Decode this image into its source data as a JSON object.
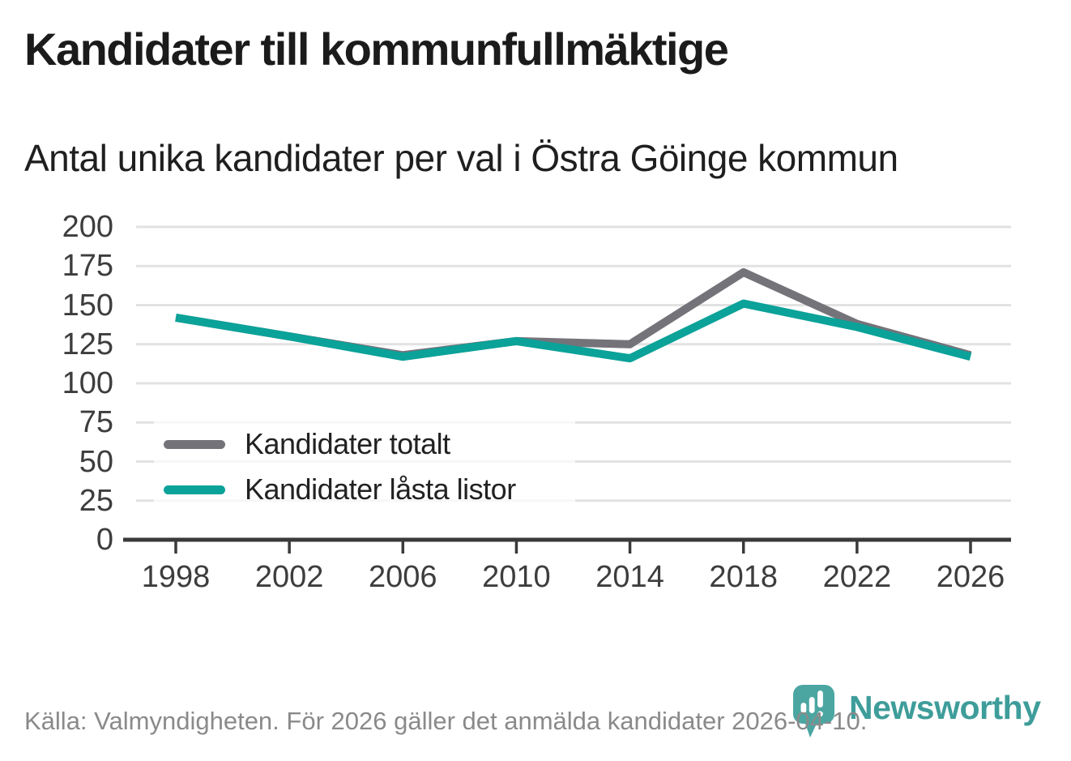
{
  "header": {
    "title": "Kandidater till kommunfullmäktige",
    "subtitle": "Antal unika kandidater per val i Östra Göinge kommun"
  },
  "chart_data": {
    "type": "line",
    "x": [
      1998,
      2002,
      2006,
      2010,
      2014,
      2018,
      2022,
      2026
    ],
    "series": [
      {
        "name": "Kandidater totalt",
        "color": "#75737A",
        "values": [
          142,
          130,
          118,
          127,
          125,
          171,
          138,
          118
        ]
      },
      {
        "name": "Kandidater låsta listor",
        "color": "#0AA299",
        "values": [
          142,
          130,
          117,
          127,
          116,
          151,
          136,
          117
        ]
      }
    ],
    "ylim": [
      0,
      200
    ],
    "yticks": [
      0,
      25,
      50,
      75,
      100,
      125,
      150,
      175,
      200
    ],
    "grid": true,
    "legend_position": "inside-bottom-left",
    "xlabel": "",
    "ylabel": ""
  },
  "footer": {
    "source": "Källa: Valmyndigheten. För 2026 gäller det anmälda kandidater 2026-04-10."
  },
  "logo": {
    "wordmark": "Newsworthy",
    "icon": "newsworthy-pin-barchart-icon",
    "pin_color": "#4BA6A2",
    "wordmark_color": "#3E9D9A"
  },
  "colors": {
    "grid": "#E2E2E2",
    "axis": "#3A3A3A",
    "tick_label": "#3D3D3D",
    "footer_text": "#8A8A8A"
  }
}
